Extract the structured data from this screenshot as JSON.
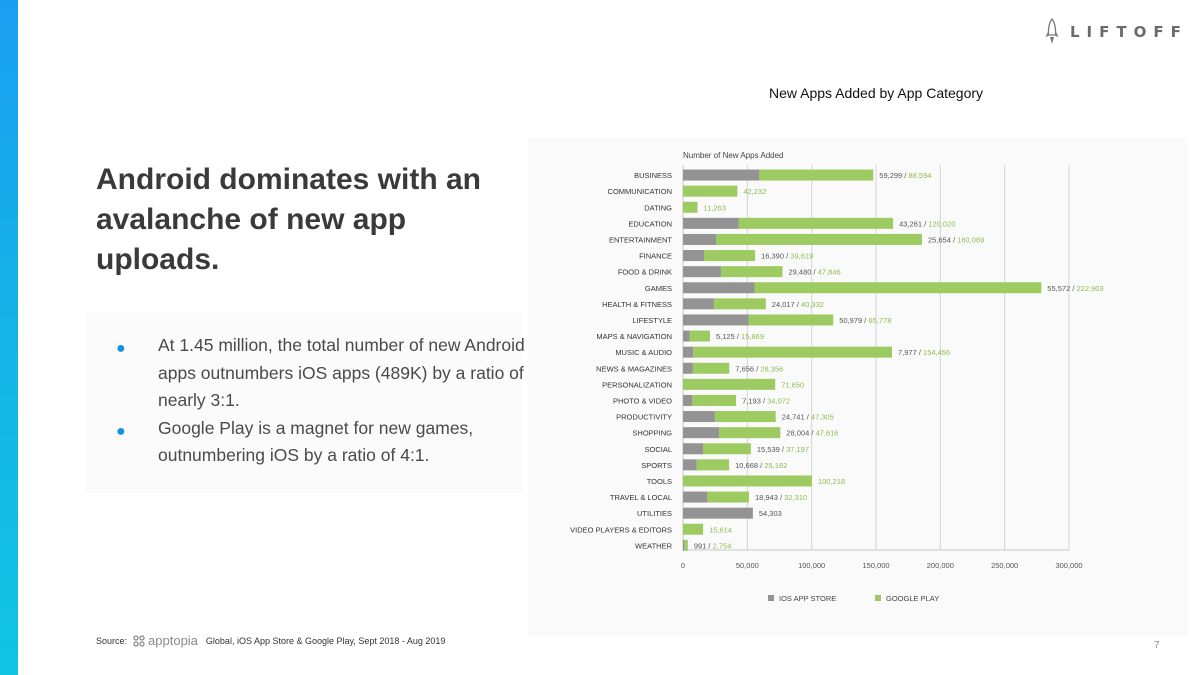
{
  "logo": {
    "text": "LIFTOFF",
    "icon": "rocket-icon"
  },
  "chart_heading": "New Apps Added by App Category",
  "headline": "Android dominates with an avalanche of new app uploads.",
  "bullets": [
    "At 1.45 million, the total number of new Android apps outnumbers iOS apps (489K) by a ratio of nearly 3:1.",
    "Google Play is a magnet for new games, outnumbering iOS by a ratio of 4:1."
  ],
  "source": {
    "label": "Source:",
    "brand": "apptopia",
    "text": "Global, iOS App Store & Google Play, Sept 2018 - Aug 2019"
  },
  "page_number": "7",
  "colors": {
    "ios": "#939393",
    "google": "#9dcb62",
    "accent": "#1a8fe0"
  },
  "chart_data": {
    "type": "bar",
    "orientation": "horizontal",
    "title": "Number of New Apps Added",
    "xlim": [
      0,
      300000
    ],
    "xticks": [
      0,
      50000,
      100000,
      150000,
      200000,
      250000,
      300000
    ],
    "xtick_labels": [
      "0",
      "50,000",
      "100,000",
      "150,000",
      "200,000",
      "250,000",
      "300,000"
    ],
    "categories": [
      "BUSINESS",
      "COMMUNICATION",
      "DATING",
      "EDUCATION",
      "ENTERTAINMENT",
      "FINANCE",
      "FOOD & DRINK",
      "GAMES",
      "HEALTH & FITNESS",
      "LIFESTYLE",
      "MAPS & NAVIGATION",
      "MUSIC & AUDIO",
      "NEWS & MAGAZINES",
      "PERSONALIZATION",
      "PHOTO & VIDEO",
      "PRODUCTIVITY",
      "SHOPPING",
      "SOCIAL",
      "SPORTS",
      "TOOLS",
      "TRAVEL & LOCAL",
      "UTILITIES",
      "VIDEO PLAYERS & EDITORS",
      "WEATHER"
    ],
    "series": [
      {
        "name": "IOS APP STORE",
        "values": [
          59299,
          null,
          null,
          43261,
          25654,
          16390,
          29480,
          55572,
          24017,
          50979,
          5125,
          7977,
          7656,
          null,
          7193,
          24741,
          28004,
          15539,
          10668,
          null,
          18943,
          54303,
          null,
          991
        ]
      },
      {
        "name": "GOOGLE PLAY",
        "values": [
          88594,
          42232,
          11263,
          120020,
          160069,
          39619,
          47846,
          222903,
          40332,
          65778,
          15869,
          154456,
          28356,
          71650,
          34072,
          47305,
          47616,
          37197,
          25182,
          100218,
          32310,
          null,
          15614,
          2754
        ]
      }
    ],
    "value_labels": [
      {
        "ios": "59,299",
        "sep": " / ",
        "google": "88,594"
      },
      {
        "ios": "",
        "sep": "",
        "google": "42,232"
      },
      {
        "ios": "",
        "sep": "",
        "google": "11,263"
      },
      {
        "ios": "43,261",
        "sep": " / ",
        "google": "120,020"
      },
      {
        "ios": "25,654",
        "sep": " / ",
        "google": "160,069"
      },
      {
        "ios": "16,390",
        "sep": " / ",
        "google": "39,619"
      },
      {
        "ios": "29,480",
        "sep": " / ",
        "google": "47,846"
      },
      {
        "ios": "55,572",
        "sep": " / ",
        "google": "222,903"
      },
      {
        "ios": "24,017",
        "sep": " / ",
        "google": "40,332"
      },
      {
        "ios": "50,979",
        "sep": " / ",
        "google": "65,778"
      },
      {
        "ios": "5,125",
        "sep": " / ",
        "google": "15,869"
      },
      {
        "ios": "7,977",
        "sep": " / ",
        "google": "154,456"
      },
      {
        "ios": "7,656",
        "sep": " / ",
        "google": "28,356"
      },
      {
        "ios": "",
        "sep": "",
        "google": "71,650"
      },
      {
        "ios": "7,193",
        "sep": " / ",
        "google": "34,072"
      },
      {
        "ios": "24,741",
        "sep": " / ",
        "google": "47,305"
      },
      {
        "ios": "28,004",
        "sep": " / ",
        "google": "47,616"
      },
      {
        "ios": "15,539",
        "sep": " / ",
        "google": "37,197"
      },
      {
        "ios": "10,668",
        "sep": " / ",
        "google": "25,182"
      },
      {
        "ios": "",
        "sep": "",
        "google": "100,218"
      },
      {
        "ios": "18,943",
        "sep": " / ",
        "google": "32,310"
      },
      {
        "ios": "54,303",
        "sep": "",
        "google": ""
      },
      {
        "ios": "",
        "sep": "",
        "google": "15,614"
      },
      {
        "ios": "991",
        "sep": " / ",
        "google": "2,754"
      }
    ],
    "legend": [
      "IOS APP STORE",
      "GOOGLE PLAY"
    ],
    "legend_position": "bottom-center",
    "grid": true
  }
}
